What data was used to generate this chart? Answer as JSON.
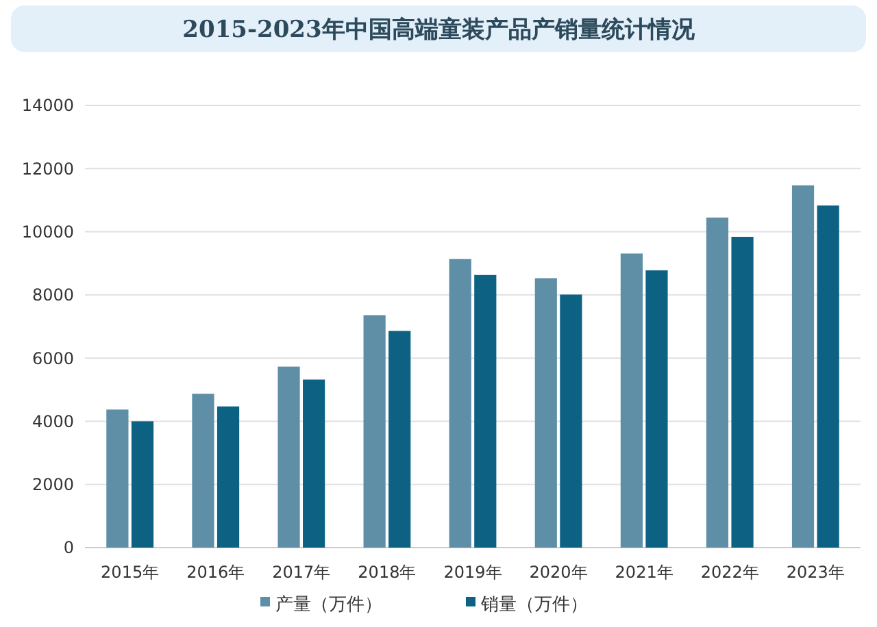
{
  "chart_data": {
    "type": "bar",
    "title": "2015-2023年中国高端童装产品产销量统计情况",
    "categories": [
      "2015年",
      "2016年",
      "2017年",
      "2018年",
      "2019年",
      "2020年",
      "2021年",
      "2022年",
      "2023年"
    ],
    "series": [
      {
        "name": "产量（万件）",
        "color": "#5e8fa6",
        "values": [
          4370,
          4870,
          5730,
          7360,
          9140,
          8530,
          9310,
          10450,
          11470
        ]
      },
      {
        "name": "销量（万件）",
        "color": "#0d6284",
        "values": [
          4000,
          4470,
          5320,
          6860,
          8630,
          8010,
          8780,
          9840,
          10830
        ]
      }
    ],
    "ylim": [
      0,
      14000
    ],
    "yticks": [
      0,
      2000,
      4000,
      6000,
      8000,
      10000,
      12000,
      14000
    ],
    "grid": "y",
    "legend": "bottom"
  }
}
